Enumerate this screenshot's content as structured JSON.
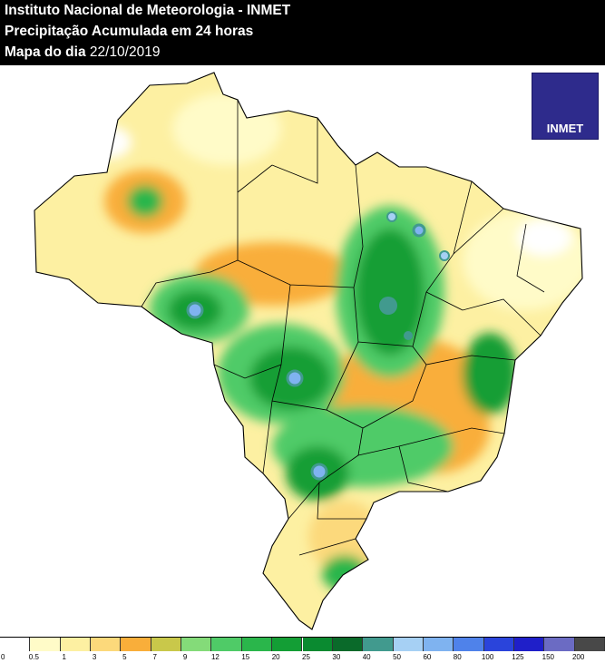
{
  "header": {
    "institute": "Instituto Nacional de Meteorologia - INMET",
    "product": "Precipitação Acumulada em 24 horas",
    "date_label": "Mapa do dia",
    "date_value": "22/10/2019"
  },
  "logo": {
    "text": "INMET"
  },
  "legend": {
    "colors": [
      "#ffffff",
      "#fffbc8",
      "#fdf0a2",
      "#fcd97b",
      "#f9ae3a",
      "#c9c84a",
      "#84db79",
      "#4fcb67",
      "#2ab64b",
      "#139e35",
      "#0a8a30",
      "#0a6a2a",
      "#419a8e",
      "#a6d0f4",
      "#7fb3f0",
      "#4f82ea",
      "#2a44db",
      "#1f1fc9",
      "#6b6bc3",
      "#484848"
    ],
    "labels": [
      "0",
      "0.5",
      "1",
      "3",
      "5",
      "7",
      "9",
      "12",
      "15",
      "20",
      "25",
      "30",
      "40",
      "50",
      "60",
      "80",
      "100",
      "125",
      "150",
      "200"
    ]
  }
}
